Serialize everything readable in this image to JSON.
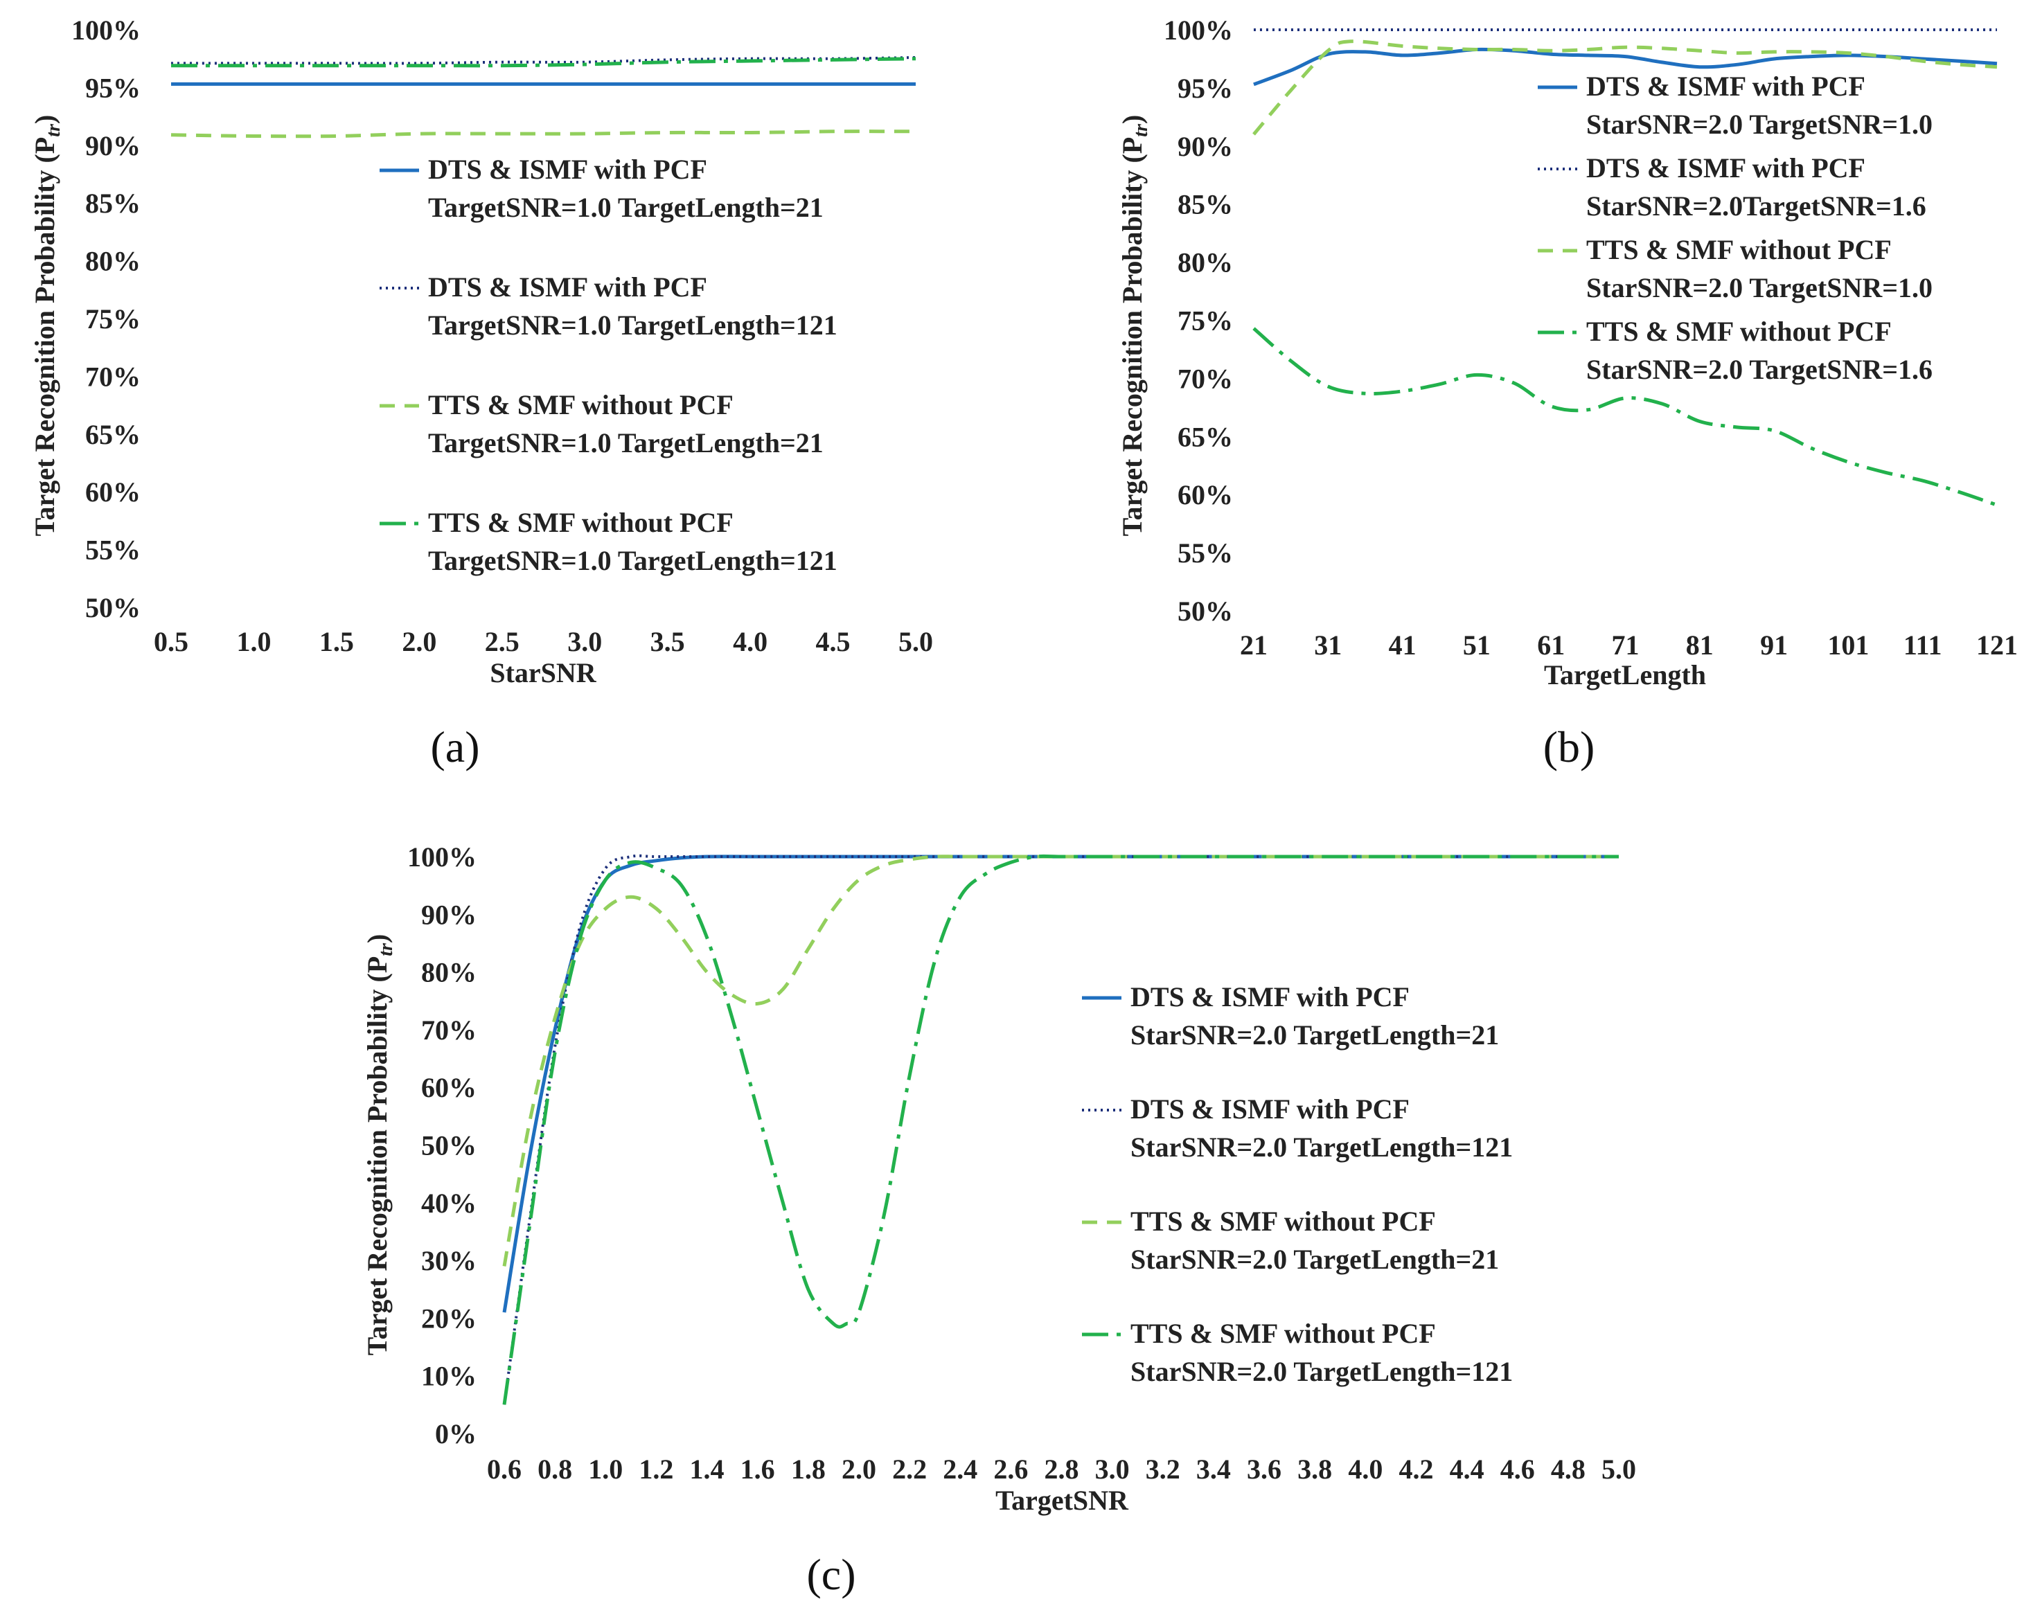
{
  "styles": {
    "dts_solid": {
      "color": "#1f6fbf",
      "dash": "",
      "width": 5
    },
    "dts_dotted": {
      "color": "#1c2f7a",
      "dash": "3 6",
      "width": 4
    },
    "tts_dashed": {
      "color": "#92cf5c",
      "dash": "22 14",
      "width": 5
    },
    "tts_dashdot": {
      "color": "#22b14c",
      "dash": "38 12 6 12",
      "width": 5
    }
  },
  "chart_data": [
    {
      "id": "a",
      "type": "line",
      "caption": "(a)",
      "xlabel": "StarSNR",
      "ylabel": "Target Recognition Probability (P",
      "ylabel_sub": "tr",
      "ylabel_end": ")",
      "x_tick_labels": [
        "0.5",
        "1.0",
        "1.5",
        "2.0",
        "2.5",
        "3.0",
        "3.5",
        "4.0",
        "4.5",
        "5.0"
      ],
      "y_tick_labels": [
        "50%",
        "55%",
        "60%",
        "65%",
        "70%",
        "75%",
        "80%",
        "85%",
        "90%",
        "95%",
        "100%"
      ],
      "xlim": [
        0.5,
        5.0
      ],
      "ylim": [
        50,
        100
      ],
      "series": [
        {
          "name": "DTS & ISMF with PCF",
          "name2": "TargetSNR=1.0 TargetLength=21",
          "style": "dts_solid",
          "x": [
            0.5,
            1.0,
            1.5,
            2.0,
            2.5,
            3.0,
            3.5,
            4.0,
            4.5,
            5.0
          ],
          "y": [
            95.3,
            95.3,
            95.3,
            95.3,
            95.3,
            95.3,
            95.3,
            95.3,
            95.3,
            95.3
          ]
        },
        {
          "name": "DTS & ISMF with PCF",
          "name2": "TargetSNR=1.0 TargetLength=121",
          "style": "dts_dotted",
          "x": [
            0.5,
            1.0,
            1.5,
            2.0,
            2.5,
            3.0,
            3.5,
            4.0,
            4.5,
            5.0
          ],
          "y": [
            97.1,
            97.1,
            97.1,
            97.1,
            97.2,
            97.2,
            97.4,
            97.5,
            97.5,
            97.6
          ]
        },
        {
          "name": "TTS & SMF without PCF",
          "name2": "TargetSNR=1.0 TargetLength=21",
          "style": "tts_dashed",
          "x": [
            0.5,
            1.0,
            1.5,
            2.0,
            2.5,
            3.0,
            3.5,
            4.0,
            4.5,
            5.0
          ],
          "y": [
            90.9,
            90.8,
            90.8,
            91.0,
            91.0,
            91.0,
            91.1,
            91.1,
            91.2,
            91.2
          ]
        },
        {
          "name": "TTS & SMF without PCF",
          "name2": "TargetSNR=1.0 TargetLength=121",
          "style": "tts_dashdot",
          "x": [
            0.5,
            1.0,
            1.5,
            2.0,
            2.5,
            3.0,
            3.5,
            4.0,
            4.5,
            5.0
          ],
          "y": [
            96.9,
            96.9,
            96.9,
            96.9,
            96.9,
            97.0,
            97.2,
            97.3,
            97.4,
            97.5
          ]
        }
      ]
    },
    {
      "id": "b",
      "type": "line",
      "caption": "(b)",
      "xlabel": "TargetLength",
      "ylabel": "Target Recognition Probability (P",
      "ylabel_sub": "tr",
      "ylabel_end": ")",
      "x_tick_labels": [
        "21",
        "31",
        "41",
        "51",
        "61",
        "71",
        "81",
        "91",
        "101",
        "111",
        "121"
      ],
      "y_tick_labels": [
        "50%",
        "55%",
        "60%",
        "65%",
        "70%",
        "75%",
        "80%",
        "85%",
        "90%",
        "95%",
        "100%"
      ],
      "xlim": [
        21,
        121
      ],
      "ylim": [
        50,
        100
      ],
      "series": [
        {
          "name": "DTS & ISMF with PCF",
          "name2": "StarSNR=2.0 TargetSNR=1.0",
          "style": "dts_solid",
          "x": [
            21,
            26,
            31,
            36,
            41,
            46,
            51,
            56,
            61,
            66,
            71,
            76,
            81,
            86,
            91,
            96,
            101,
            106,
            111,
            116,
            121
          ],
          "y": [
            95.3,
            96.5,
            97.9,
            98.1,
            97.8,
            98.0,
            98.3,
            98.2,
            97.9,
            97.8,
            97.7,
            97.2,
            96.8,
            97.0,
            97.5,
            97.7,
            97.8,
            97.7,
            97.5,
            97.3,
            97.1
          ]
        },
        {
          "name": "DTS & ISMF with PCF",
          "name2": "StarSNR=2.0TargetSNR=1.6",
          "style": "dts_dotted",
          "x": [
            21,
            31,
            41,
            51,
            61,
            71,
            81,
            91,
            101,
            111,
            121
          ],
          "y": [
            100,
            100,
            100,
            100,
            100,
            100,
            100,
            100,
            100,
            100,
            100
          ]
        },
        {
          "name": "TTS & SMF without PCF",
          "name2": "StarSNR=2.0 TargetSNR=1.0",
          "style": "tts_dashed",
          "x": [
            21,
            26,
            31,
            34,
            41,
            46,
            51,
            56,
            61,
            66,
            71,
            76,
            81,
            86,
            91,
            96,
            101,
            106,
            111,
            116,
            121
          ],
          "y": [
            91.0,
            94.8,
            98.2,
            99.0,
            98.6,
            98.4,
            98.3,
            98.3,
            98.2,
            98.3,
            98.5,
            98.4,
            98.2,
            98.0,
            98.1,
            98.1,
            98.0,
            97.7,
            97.3,
            97.0,
            96.8
          ]
        },
        {
          "name": "TTS & SMF without PCF",
          "name2": "StarSNR=2.0 TargetSNR=1.6",
          "style": "tts_dashdot",
          "x": [
            21,
            26,
            31,
            36,
            41,
            46,
            51,
            56,
            61,
            66,
            71,
            76,
            81,
            86,
            91,
            96,
            101,
            106,
            111,
            116,
            121
          ],
          "y": [
            74.3,
            71.5,
            69.3,
            68.7,
            68.9,
            69.5,
            70.3,
            69.6,
            67.6,
            67.3,
            68.3,
            67.8,
            66.3,
            65.8,
            65.5,
            64.0,
            62.8,
            61.9,
            61.2,
            60.2,
            59.1
          ]
        }
      ]
    },
    {
      "id": "c",
      "type": "line",
      "caption": "(c)",
      "xlabel": "TargetSNR",
      "ylabel": "Target Recognition Probability (P",
      "ylabel_sub": "tr",
      "ylabel_end": ")",
      "x_tick_labels": [
        "0.6",
        "0.8",
        "1.0",
        "1.2",
        "1.4",
        "1.6",
        "1.8",
        "2.0",
        "2.2",
        "2.4",
        "2.6",
        "2.8",
        "3.0",
        "3.2",
        "3.4",
        "3.6",
        "3.8",
        "4.0",
        "4.2",
        "4.4",
        "4.6",
        "4.8",
        "5.0"
      ],
      "y_tick_labels": [
        "0%",
        "10%",
        "20%",
        "30%",
        "40%",
        "50%",
        "60%",
        "70%",
        "80%",
        "90%",
        "100%"
      ],
      "xlim": [
        0.6,
        5.0
      ],
      "ylim": [
        0,
        100
      ],
      "series": [
        {
          "name": "DTS & ISMF with PCF",
          "name2": "StarSNR=2.0 TargetLength=21",
          "style": "dts_solid",
          "x": [
            0.6,
            0.7,
            0.8,
            0.9,
            1.0,
            1.1,
            1.2,
            1.3,
            1.4,
            1.6,
            2.0,
            3.0,
            4.0,
            5.0
          ],
          "y": [
            21,
            48,
            70,
            87,
            96,
            98.5,
            99.3,
            99.8,
            100,
            100,
            100,
            100,
            100,
            100
          ]
        },
        {
          "name": "DTS & ISMF with PCF",
          "name2": "StarSNR=2.0 TargetLength=121",
          "style": "dts_dotted",
          "x": [
            0.6,
            0.7,
            0.8,
            0.9,
            1.0,
            1.1,
            1.2,
            1.4,
            2.0,
            3.0,
            4.0,
            5.0
          ],
          "y": [
            5,
            37,
            67,
            88,
            98,
            100,
            100,
            100,
            100,
            100,
            100,
            100
          ]
        },
        {
          "name": "TTS & SMF without PCF",
          "name2": "StarSNR=2.0 TargetLength=21",
          "style": "tts_dashed",
          "x": [
            0.6,
            0.7,
            0.8,
            0.9,
            1.0,
            1.1,
            1.2,
            1.3,
            1.4,
            1.5,
            1.6,
            1.7,
            1.8,
            1.9,
            2.0,
            2.1,
            2.2,
            2.3,
            2.4,
            2.6,
            3.0,
            4.0,
            5.0
          ],
          "y": [
            29,
            54,
            72,
            85,
            91,
            93,
            91,
            86,
            80,
            76,
            74.5,
            77,
            84,
            91,
            96,
            98.5,
            99.5,
            100,
            100,
            100,
            100,
            100,
            100
          ]
        },
        {
          "name": "TTS & SMF without PCF",
          "name2": "StarSNR=2.0 TargetLength=121",
          "style": "tts_dashdot",
          "x": [
            0.6,
            0.7,
            0.8,
            0.9,
            1.0,
            1.1,
            1.2,
            1.3,
            1.4,
            1.5,
            1.6,
            1.7,
            1.8,
            1.9,
            1.95,
            2.0,
            2.1,
            2.2,
            2.3,
            2.4,
            2.5,
            2.6,
            2.7,
            2.8,
            3.0,
            4.0,
            5.0
          ],
          "y": [
            5,
            36,
            66,
            86,
            96,
            99,
            98,
            95,
            86,
            72,
            56,
            40,
            25,
            19,
            19,
            21,
            38,
            62,
            82,
            93,
            97,
            99,
            100,
            100,
            100,
            100,
            100
          ]
        }
      ]
    }
  ]
}
